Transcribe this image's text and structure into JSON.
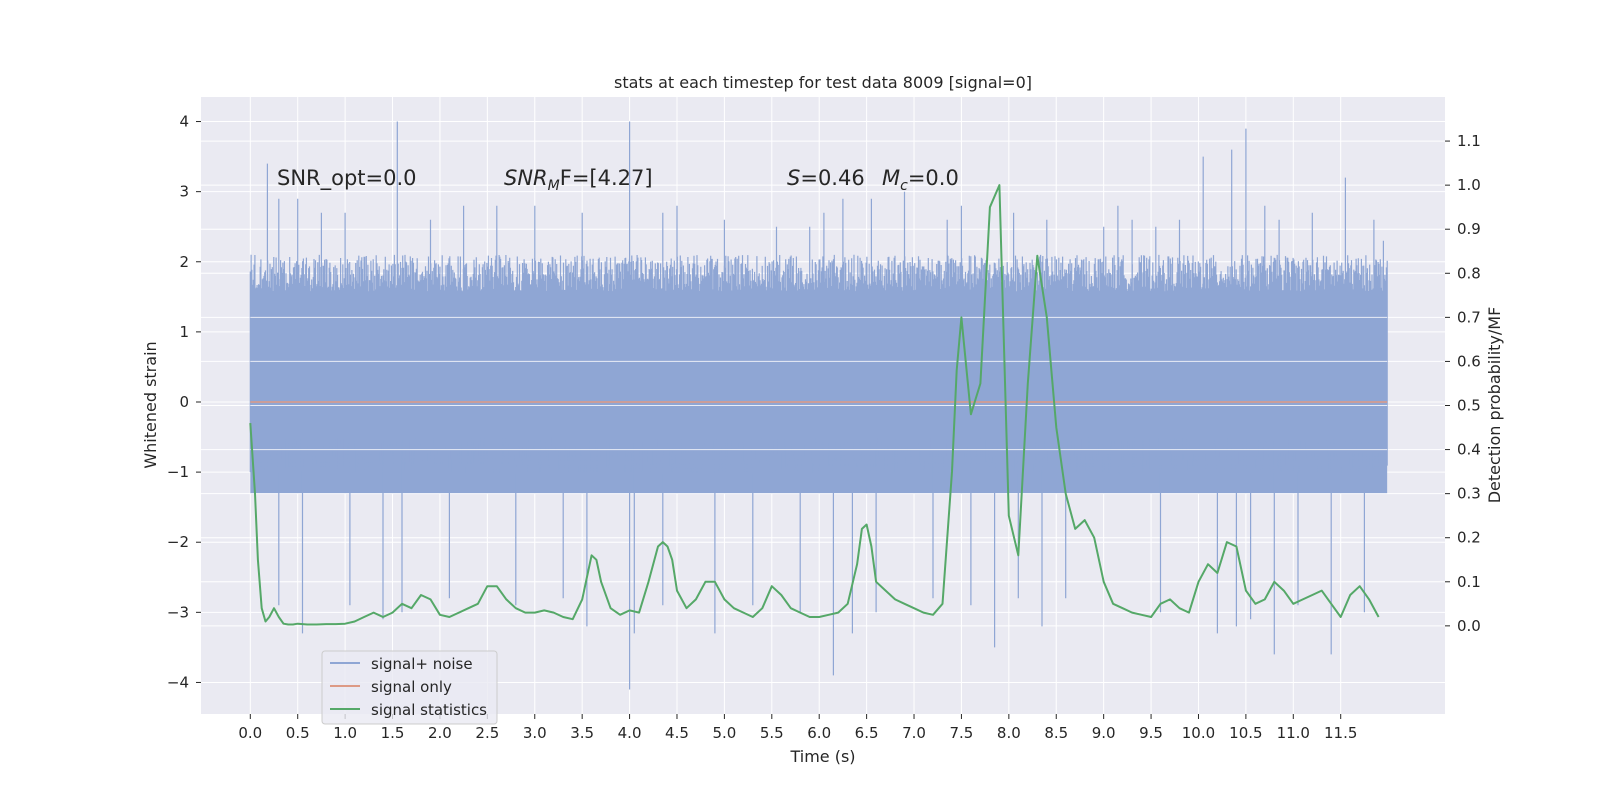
{
  "chart_data": {
    "type": "line",
    "title": "stats at each timestep for test data 8009 [signal=0]",
    "xlabel": "Time (s)",
    "ylabel_left": "Whitened strain",
    "ylabel_right": "Detection probability/MF",
    "xlim": [
      -0.52,
      12.6
    ],
    "ylim_left": [
      -4.45,
      4.35
    ],
    "ylim_right": [
      -0.2,
      1.2
    ],
    "grid": true,
    "x_ticks": [
      "0.0",
      "0.5",
      "1.0",
      "1.5",
      "2.0",
      "2.5",
      "3.0",
      "3.5",
      "4.0",
      "4.5",
      "5.0",
      "5.5",
      "6.0",
      "6.5",
      "7.0",
      "7.5",
      "8.0",
      "8.5",
      "9.0",
      "9.5",
      "10.0",
      "10.5",
      "11.0",
      "11.5"
    ],
    "y_ticks_left": [
      4,
      3,
      2,
      1,
      0,
      -1,
      -2,
      -3,
      -4
    ],
    "y_tick_labels_left": [
      "4",
      "3",
      "2",
      "1",
      "0",
      "−1",
      "−2",
      "−3",
      "−4"
    ],
    "y_ticks_right": [
      "1.1",
      "1.0",
      "0.9",
      "0.8",
      "0.7",
      "0.6",
      "0.5",
      "0.4",
      "0.3",
      "0.2",
      "0.1",
      "0.0"
    ],
    "annotations": {
      "snr_opt": "SNR_opt=0.0",
      "snr_mf_main": "SNR",
      "snr_mf_sub": "M",
      "snr_mf_tail": "F=[4.27]",
      "s_main": "S",
      "s_tail": "=0.46",
      "mc_main": "M",
      "mc_sub": "c",
      "mc_tail": "=0.0"
    },
    "legend": {
      "placement": "lower-left",
      "entries": [
        "signal+ noise",
        "signal only",
        "signal statistics"
      ]
    },
    "series": [
      {
        "name": "signal+ noise",
        "axis": "left",
        "color": "#8fa6d4",
        "x_range": [
          0.0,
          11.99
        ],
        "envelope_upper_typical": 2.1,
        "envelope_lower_typical": -2.1,
        "dense_band": [
          -1.3,
          1.3
        ],
        "peaks_upper": [
          [
            0.18,
            3.4
          ],
          [
            0.3,
            2.9
          ],
          [
            0.5,
            2.9
          ],
          [
            0.75,
            2.7
          ],
          [
            1.0,
            2.7
          ],
          [
            1.55,
            4.0
          ],
          [
            1.9,
            2.6
          ],
          [
            2.25,
            2.8
          ],
          [
            2.6,
            2.8
          ],
          [
            3.0,
            2.8
          ],
          [
            3.5,
            2.7
          ],
          [
            4.0,
            4.0
          ],
          [
            4.35,
            2.7
          ],
          [
            4.5,
            2.8
          ],
          [
            5.0,
            2.6
          ],
          [
            5.55,
            2.5
          ],
          [
            5.9,
            2.5
          ],
          [
            6.05,
            2.7
          ],
          [
            6.25,
            2.9
          ],
          [
            6.55,
            2.9
          ],
          [
            6.9,
            3.0
          ],
          [
            7.35,
            2.6
          ],
          [
            7.5,
            2.8
          ],
          [
            8.05,
            2.7
          ],
          [
            8.4,
            2.6
          ],
          [
            9.0,
            2.5
          ],
          [
            9.15,
            2.8
          ],
          [
            9.3,
            2.6
          ],
          [
            9.55,
            2.5
          ],
          [
            9.8,
            2.6
          ],
          [
            10.05,
            3.5
          ],
          [
            10.35,
            3.6
          ],
          [
            10.5,
            3.9
          ],
          [
            10.7,
            2.8
          ],
          [
            10.85,
            2.6
          ],
          [
            11.2,
            2.7
          ],
          [
            11.55,
            3.2
          ],
          [
            11.85,
            2.6
          ],
          [
            11.95,
            2.3
          ]
        ],
        "peaks_lower": [
          [
            0.3,
            -2.9
          ],
          [
            0.55,
            -3.3
          ],
          [
            1.05,
            -2.9
          ],
          [
            1.4,
            -3.1
          ],
          [
            1.6,
            -3.0
          ],
          [
            2.1,
            -2.8
          ],
          [
            2.8,
            -2.9
          ],
          [
            3.3,
            -2.8
          ],
          [
            3.55,
            -3.2
          ],
          [
            4.0,
            -4.1
          ],
          [
            4.05,
            -3.3
          ],
          [
            4.35,
            -2.9
          ],
          [
            4.9,
            -3.3
          ],
          [
            5.3,
            -2.9
          ],
          [
            5.8,
            -3.0
          ],
          [
            6.15,
            -3.9
          ],
          [
            6.35,
            -3.3
          ],
          [
            6.6,
            -3.0
          ],
          [
            7.2,
            -2.8
          ],
          [
            7.6,
            -2.9
          ],
          [
            7.85,
            -3.5
          ],
          [
            8.1,
            -2.8
          ],
          [
            8.35,
            -3.2
          ],
          [
            8.6,
            -2.8
          ],
          [
            9.6,
            -3.0
          ],
          [
            10.2,
            -3.3
          ],
          [
            10.4,
            -3.2
          ],
          [
            10.55,
            -3.1
          ],
          [
            10.8,
            -3.6
          ],
          [
            11.05,
            -2.9
          ],
          [
            11.4,
            -3.6
          ],
          [
            11.75,
            -3.0
          ]
        ]
      },
      {
        "name": "signal only",
        "axis": "left",
        "color": "#dd9a85",
        "x": [
          0.0,
          11.99
        ],
        "values": [
          0.0,
          0.0
        ]
      },
      {
        "name": "signal statistics",
        "axis": "right",
        "color": "#55a868",
        "x": [
          0.0,
          0.05,
          0.08,
          0.12,
          0.16,
          0.2,
          0.25,
          0.3,
          0.35,
          0.4,
          0.45,
          0.5,
          0.55,
          0.6,
          0.65,
          0.7,
          0.8,
          0.9,
          1.0,
          1.1,
          1.2,
          1.3,
          1.4,
          1.5,
          1.6,
          1.7,
          1.8,
          1.9,
          2.0,
          2.1,
          2.2,
          2.3,
          2.4,
          2.5,
          2.6,
          2.7,
          2.8,
          2.9,
          3.0,
          3.1,
          3.2,
          3.3,
          3.4,
          3.5,
          3.6,
          3.65,
          3.7,
          3.8,
          3.9,
          4.0,
          4.1,
          4.2,
          4.3,
          4.35,
          4.4,
          4.45,
          4.5,
          4.6,
          4.7,
          4.8,
          4.9,
          5.0,
          5.1,
          5.2,
          5.3,
          5.4,
          5.5,
          5.6,
          5.7,
          5.8,
          5.9,
          6.0,
          6.1,
          6.2,
          6.3,
          6.4,
          6.45,
          6.5,
          6.55,
          6.6,
          6.7,
          6.8,
          6.9,
          7.0,
          7.1,
          7.2,
          7.3,
          7.4,
          7.45,
          7.5,
          7.6,
          7.7,
          7.8,
          7.9,
          8.0,
          8.1,
          8.2,
          8.3,
          8.4,
          8.5,
          8.6,
          8.7,
          8.8,
          8.9,
          9.0,
          9.1,
          9.2,
          9.3,
          9.4,
          9.5,
          9.6,
          9.7,
          9.8,
          9.9,
          10.0,
          10.1,
          10.2,
          10.3,
          10.4,
          10.5,
          10.6,
          10.7,
          10.8,
          10.9,
          11.0,
          11.1,
          11.2,
          11.3,
          11.4,
          11.5,
          11.6,
          11.7,
          11.8,
          11.9
        ],
        "values": [
          0.46,
          0.3,
          0.15,
          0.04,
          0.01,
          0.02,
          0.04,
          0.02,
          0.005,
          0.003,
          0.003,
          0.005,
          0.004,
          0.003,
          0.003,
          0.003,
          0.004,
          0.004,
          0.005,
          0.01,
          0.02,
          0.03,
          0.02,
          0.03,
          0.05,
          0.04,
          0.07,
          0.06,
          0.025,
          0.02,
          0.03,
          0.04,
          0.05,
          0.09,
          0.09,
          0.06,
          0.04,
          0.03,
          0.03,
          0.035,
          0.03,
          0.02,
          0.015,
          0.06,
          0.16,
          0.15,
          0.1,
          0.04,
          0.025,
          0.035,
          0.03,
          0.1,
          0.18,
          0.19,
          0.18,
          0.15,
          0.08,
          0.04,
          0.06,
          0.1,
          0.1,
          0.06,
          0.04,
          0.03,
          0.02,
          0.04,
          0.09,
          0.07,
          0.04,
          0.03,
          0.02,
          0.02,
          0.025,
          0.03,
          0.05,
          0.14,
          0.22,
          0.23,
          0.18,
          0.1,
          0.08,
          0.06,
          0.05,
          0.04,
          0.03,
          0.025,
          0.05,
          0.35,
          0.58,
          0.7,
          0.48,
          0.55,
          0.95,
          1.0,
          0.25,
          0.16,
          0.55,
          0.84,
          0.7,
          0.45,
          0.3,
          0.22,
          0.24,
          0.2,
          0.1,
          0.05,
          0.04,
          0.03,
          0.025,
          0.02,
          0.05,
          0.06,
          0.04,
          0.03,
          0.1,
          0.14,
          0.12,
          0.19,
          0.18,
          0.08,
          0.05,
          0.06,
          0.1,
          0.08,
          0.05,
          0.06,
          0.07,
          0.08,
          0.05,
          0.02,
          0.07,
          0.09,
          0.06,
          0.02
        ]
      }
    ]
  },
  "colors": {
    "figure_bg": "#ffffff",
    "axes_bg": "#eaeaf2",
    "grid": "#ffffff",
    "text": "#262626"
  }
}
